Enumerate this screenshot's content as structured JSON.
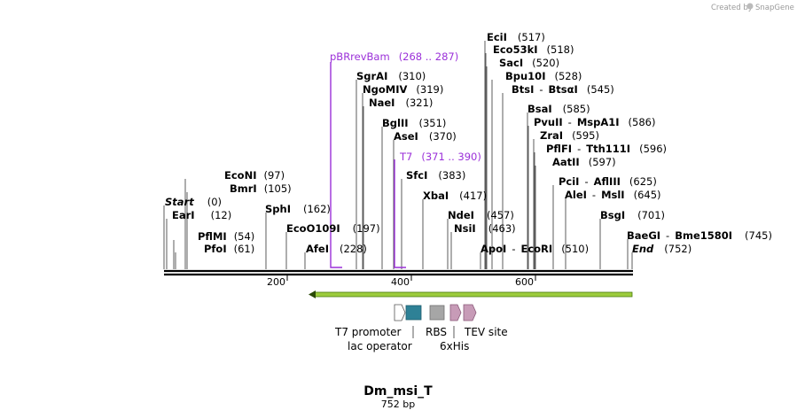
{
  "watermark": {
    "prefix": "Created by",
    "brand": "SnapGene"
  },
  "map": {
    "name": "Dm_msi_T",
    "length_label": "752 bp",
    "total_bp": 752
  },
  "ruler": {
    "ticks": [
      "200",
      "400",
      "600"
    ]
  },
  "sites": [
    {
      "name": "Start",
      "pos": "(0)",
      "italic": true
    },
    {
      "name": "EarI",
      "pos": "(12)"
    },
    {
      "name": "PflMI",
      "pos": "(54)"
    },
    {
      "name": "PfoI",
      "pos": "(61)"
    },
    {
      "name": "EcoNI",
      "pos": "(97)"
    },
    {
      "name": "BmrI",
      "pos": "(105)"
    },
    {
      "name": "SphI",
      "pos": "(162)"
    },
    {
      "name": "EcoO109I",
      "pos": "(197)"
    },
    {
      "name": "AfeI",
      "pos": "(228)"
    },
    {
      "name": "SgrAI",
      "pos": "(310)"
    },
    {
      "name": "NgoMIV",
      "pos": "(319)"
    },
    {
      "name": "NaeI",
      "pos": "(321)"
    },
    {
      "name": "BglII",
      "pos": "(351)"
    },
    {
      "name": "AseI",
      "pos": "(370)"
    },
    {
      "name": "SfcI",
      "pos": "(383)"
    },
    {
      "name": "XbaI",
      "pos": "(417)"
    },
    {
      "name": "NdeI",
      "pos": "(457)"
    },
    {
      "name": "NsiI",
      "pos": "(463)"
    },
    {
      "name": "EciI",
      "pos": "(517)"
    },
    {
      "name": "Eco53kI",
      "pos": "(518)"
    },
    {
      "name": "SacI",
      "pos": "(520)"
    },
    {
      "name": "Bpu10I",
      "pos": "(528)"
    },
    {
      "name": "BtsI",
      "name2": "BtsαI",
      "pos": "(545)"
    },
    {
      "name": "ApoI",
      "name2": "EcoRI",
      "pos": "(510)"
    },
    {
      "name": "BsaI",
      "pos": "(585)"
    },
    {
      "name": "PvuII",
      "name2": "MspA1I",
      "pos": "(586)"
    },
    {
      "name": "ZraI",
      "pos": "(595)"
    },
    {
      "name": "PflFI",
      "name2": "Tth111I",
      "pos": "(596)"
    },
    {
      "name": "AatII",
      "pos": "(597)"
    },
    {
      "name": "PciI",
      "name2": "AflIII",
      "pos": "(625)"
    },
    {
      "name": "AleI",
      "name2": "MslI",
      "pos": "(645)"
    },
    {
      "name": "BsgI",
      "pos": "(701)"
    },
    {
      "name": "BaeGI",
      "name2": "Bme1580I",
      "pos": "(745)"
    },
    {
      "name": "End",
      "pos": "(752)",
      "italic": true
    }
  ],
  "primers": [
    {
      "name": "pBRrevBam",
      "range": "(268 .. 287)"
    },
    {
      "name": "T7",
      "range": "(371 .. 390)"
    }
  ],
  "features": {
    "labels": [
      "T7 promoter",
      "lac operator",
      "RBS",
      "6xHis",
      "TEV site"
    ],
    "colors": {
      "promoter": "#ffffff",
      "lac_operator": "#2e8196",
      "rbs": "#a6a6a6",
      "his": "#c79bb7",
      "tev": "#c79bb7",
      "orf": "#9ccc3c",
      "primer": "#9b30d9"
    }
  }
}
